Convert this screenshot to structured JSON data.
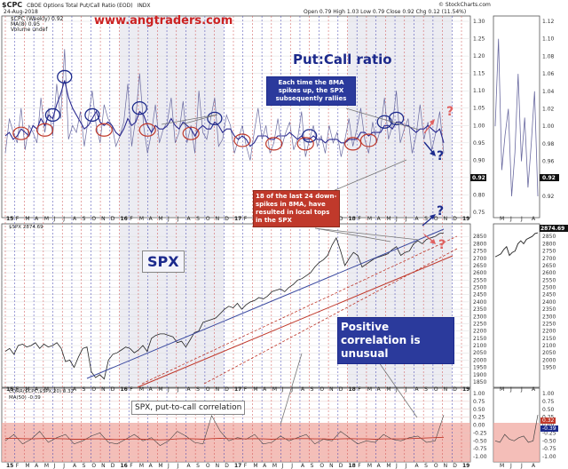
{
  "header": {
    "symbol": "$CPC",
    "description": "CBOE Options Total Put/Call Ratio (EOD)",
    "exchange": "INDX",
    "date": "24-Aug-2018",
    "stats": "Open 0.79  High 1.03  Low 0.79  Close 0.92  Chg 0.12 (11.54%)",
    "credit": "© StockCharts.com",
    "legend_line1": "$CPC (Weekly) 0.92",
    "legend_line2": "MA(8) 0.95",
    "legend_line3": "Volume undef"
  },
  "watermark": "www.angtraders.com",
  "annotations": {
    "title_pc": "Put:Call ratio",
    "box_rallies": "Each time the 8MA spikes up, the SPX subsequently rallies",
    "box_tops": "18 of the last 24 down-spikes in 8MA, have resulted in local tops in the SPX",
    "spx_label": "SPX",
    "corr_label": "SPX, put-to-call correlation",
    "pos_corr": "Positive correlation is unusual",
    "q1": "?",
    "q2": "?",
    "q3": "?",
    "q4": "?"
  },
  "colors": {
    "accent_blue": "#1c2a8c",
    "accent_red": "#c0392b",
    "question_red": "#e06060",
    "watermark_red": "#cc2222",
    "band_red": "#f0a8a0",
    "grid_dash_red": "#d05050",
    "grid_dash_blue": "#4040b0",
    "line_main": "#6a6aa0",
    "line_ma": "#2a2a90"
  },
  "chart_data": [
    {
      "type": "line",
      "title": "CBOE Options Total Put/Call Ratio (EOD)",
      "x_ticks": [
        "15",
        "F",
        "M",
        "A",
        "M",
        "J",
        "J",
        "A",
        "S",
        "O",
        "N",
        "D",
        "16",
        "F",
        "M",
        "A",
        "M",
        "J",
        "J",
        "A",
        "S",
        "O",
        "N",
        "D",
        "17",
        "F",
        "M",
        "A",
        "M",
        "J",
        "J",
        "A",
        "S",
        "O",
        "N",
        "D",
        "18",
        "F",
        "M",
        "A",
        "M",
        "J",
        "J",
        "A",
        "S",
        "O",
        "N",
        "D",
        "19"
      ],
      "ylim": [
        0.75,
        1.3
      ],
      "y_ticks": [
        "1.30",
        "1.25",
        "1.20",
        "1.15",
        "1.10",
        "1.05",
        "1.00",
        "0.95",
        "0.90",
        "0.85",
        "0.80",
        "0.75"
      ],
      "last_value_label": "0.92",
      "series": [
        {
          "name": "$CPC (Weekly)",
          "values": [
            0.92,
            1.02,
            0.98,
            0.95,
            1.05,
            0.93,
            1.0,
            0.98,
            0.95,
            1.08,
            0.98,
            1.05,
            0.97,
            1.12,
            1.02,
            1.22,
            0.96,
            1.0,
            0.98,
            1.04,
            0.94,
            1.02,
            1.1,
            1.0,
            0.95,
            1.06,
            1.02,
            1.0,
            0.94,
            0.97,
            1.01,
            1.12,
            0.94,
            1.02,
            1.15,
            1.0,
            0.92,
            0.98,
            1.06,
            0.95,
            0.99,
            1.01,
            1.08,
            0.95,
            0.98,
            1.07,
            0.95,
            1.0,
            0.92,
            1.1,
            0.98,
            0.96,
            1.02,
            1.08,
            0.94,
            0.96,
            1.03,
            1.0,
            0.92,
            0.96,
            1.0,
            0.94,
            0.9,
            0.98,
            1.05,
            0.96,
            1.0,
            0.92,
            0.95,
            1.02,
            0.94,
            0.98,
            1.01,
            0.93,
            0.96,
            1.04,
            0.91,
            0.96,
            1.0,
            0.94,
            0.97,
            0.92,
            1.0,
            0.95,
            0.98,
            0.91,
            0.96,
            1.02,
            0.94,
            0.99,
            1.05,
            0.96,
            0.92,
            1.01,
            0.95,
            0.99,
            1.08,
            0.96,
            1.0,
            1.1,
            0.95,
            0.99,
            1.02,
            0.92,
            0.97,
            1.06,
            0.96,
            1.01,
            0.93,
            0.98,
            1.04,
            0.92
          ]
        },
        {
          "name": "MA(8)",
          "values": [
            0.97,
            0.98,
            0.96,
            0.97,
            0.99,
            0.98,
            0.97,
            1.0,
            0.99,
            1.02,
            1.0,
            1.03,
            1.02,
            1.06,
            1.09,
            1.13,
            1.08,
            1.05,
            1.03,
            1.01,
            0.99,
            1.0,
            1.02,
            1.04,
            1.01,
            1.0,
            1.01,
            1.0,
            0.98,
            0.97,
            0.99,
            1.02,
            1.0,
            1.01,
            1.04,
            1.03,
            1.0,
            0.98,
            1.0,
            0.99,
            0.99,
            1.0,
            1.02,
            1.0,
            0.99,
            1.01,
            1.0,
            0.99,
            0.97,
            0.99,
            1.0,
            0.99,
            0.99,
            1.01,
            1.0,
            0.98,
            0.99,
            0.99,
            0.97,
            0.96,
            0.97,
            0.96,
            0.94,
            0.95,
            0.97,
            0.97,
            0.97,
            0.96,
            0.96,
            0.97,
            0.97,
            0.97,
            0.98,
            0.97,
            0.96,
            0.97,
            0.96,
            0.96,
            0.97,
            0.96,
            0.96,
            0.95,
            0.96,
            0.96,
            0.96,
            0.95,
            0.95,
            0.96,
            0.96,
            0.96,
            0.98,
            0.98,
            0.97,
            0.98,
            0.98,
            0.98,
            1.0,
            1.0,
            0.99,
            1.01,
            1.01,
            1.0,
            1.0,
            0.99,
            0.98,
            0.99,
            0.99,
            1.0,
            0.99,
            0.98,
            0.99,
            0.95
          ]
        }
      ]
    },
    {
      "type": "line",
      "title": "SPX",
      "legend": "$SPX 2874.69",
      "ylim": [
        1850,
        2900
      ],
      "y_ticks": [
        "2850",
        "2800",
        "2750",
        "2700",
        "2650",
        "2600",
        "2550",
        "2500",
        "2450",
        "2400",
        "2350",
        "2300",
        "2250",
        "2200",
        "2150",
        "2100",
        "2050",
        "2000",
        "1950",
        "1900",
        "1850"
      ],
      "last_value_label": "2874.69",
      "series": [
        {
          "name": "$SPX",
          "values": [
            2060,
            2080,
            2040,
            2100,
            2110,
            2090,
            2100,
            2120,
            2080,
            2110,
            2090,
            2100,
            2120,
            2080,
            1990,
            2000,
            1950,
            2020,
            2080,
            2090,
            1920,
            1880,
            1900,
            1870,
            2000,
            2040,
            2050,
            2070,
            2090,
            2080,
            2050,
            2070,
            2100,
            2060,
            2150,
            2170,
            2180,
            2180,
            2170,
            2160,
            2120,
            2130,
            2090,
            2140,
            2190,
            2200,
            2260,
            2270,
            2280,
            2290,
            2320,
            2350,
            2370,
            2360,
            2390,
            2350,
            2380,
            2400,
            2410,
            2430,
            2420,
            2440,
            2470,
            2480,
            2490,
            2470,
            2500,
            2520,
            2550,
            2560,
            2580,
            2600,
            2640,
            2670,
            2690,
            2720,
            2790,
            2840,
            2750,
            2650,
            2700,
            2740,
            2720,
            2640,
            2660,
            2680,
            2700,
            2710,
            2720,
            2730,
            2760,
            2780,
            2720,
            2740,
            2750,
            2800,
            2820,
            2800,
            2830,
            2840,
            2850,
            2870,
            2875
          ]
        }
      ]
    },
    {
      "type": "area",
      "title": "SPX, put-to-call correlation",
      "legend": "CORR($CPC,$SPX,20) 0.32",
      "legend2": "MA(50) -0.39",
      "ylim": [
        -1.0,
        1.0
      ],
      "y_ticks": [
        "1.00",
        "0.75",
        "0.50",
        "0.25",
        "0.00",
        "-0.25",
        "-0.50",
        "-0.75",
        "-1.00"
      ],
      "series": [
        {
          "name": "CORR($CPC,$SPX,20)",
          "values": [
            -0.5,
            -0.3,
            -0.6,
            -0.45,
            -0.2,
            -0.55,
            -0.4,
            -0.3,
            -0.6,
            -0.5,
            -0.35,
            -0.25,
            -0.55,
            -0.6,
            -0.45,
            -0.3,
            -0.5,
            -0.4,
            -0.65,
            -0.5,
            -0.2,
            -0.35,
            -0.55,
            -0.6,
            0.3,
            -0.2,
            -0.5,
            -0.4,
            -0.45,
            -0.3,
            -0.6,
            -0.55,
            -0.35,
            -0.5,
            -0.4,
            -0.3,
            -0.6,
            -0.45,
            -0.5,
            -0.2,
            -0.4,
            -0.6,
            -0.5,
            -0.55,
            -0.3,
            -0.45,
            -0.5,
            -0.4,
            -0.35,
            -0.55,
            -0.5,
            0.32
          ]
        },
        {
          "name": "MA(50)",
          "values": [
            -0.42,
            -0.42,
            -0.43,
            -0.44,
            -0.43,
            -0.42,
            -0.43,
            -0.44,
            -0.45,
            -0.45,
            -0.44,
            -0.44,
            -0.45,
            -0.46,
            -0.45,
            -0.44,
            -0.45,
            -0.46,
            -0.47,
            -0.46,
            -0.44,
            -0.43,
            -0.44,
            -0.45,
            -0.43,
            -0.42,
            -0.43,
            -0.44,
            -0.44,
            -0.43,
            -0.44,
            -0.45,
            -0.44,
            -0.44,
            -0.43,
            -0.43,
            -0.44,
            -0.44,
            -0.45,
            -0.44,
            -0.43,
            -0.44,
            -0.44,
            -0.45,
            -0.44,
            -0.44,
            -0.44,
            -0.43,
            -0.42,
            -0.41,
            -0.4,
            -0.39
          ]
        }
      ]
    }
  ],
  "side_panel": {
    "x_ticks": [
      "M",
      "J",
      "J",
      "A"
    ],
    "pc_y_ticks": [
      "1.12",
      "1.10",
      "1.08",
      "1.06",
      "1.04",
      "1.02",
      "1.00",
      "0.98",
      "0.96",
      "0.94",
      "0.92"
    ],
    "spx_y_ticks": [
      "2874.69",
      "2850",
      "2800",
      "2750",
      "2700",
      "2650",
      "2600",
      "2550",
      "2500",
      "2450",
      "2400",
      "2350",
      "2300",
      "2250",
      "2200",
      "2150",
      "2100",
      "2050",
      "2000",
      "1950"
    ],
    "corr_y_ticks": [
      "1.00",
      "0.75",
      "0.50",
      "0.25",
      "0.00",
      "-0.25",
      "-0.50",
      "-0.75",
      "-1.00"
    ],
    "corr_mid_label": "0.32",
    "corr_low_label": "-0.39"
  }
}
